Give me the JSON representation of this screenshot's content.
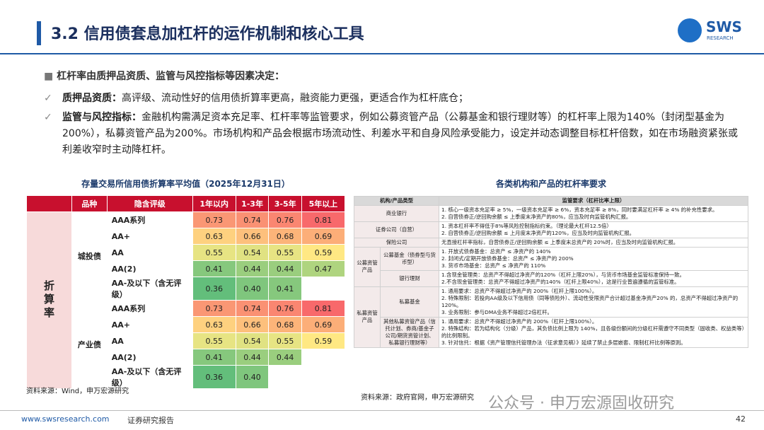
{
  "header": {
    "title": "3.2 信用债套息加杠杆的运作机制和核心工具",
    "logo": "SWS",
    "logo_sub": "RESEARCH"
  },
  "bullets": {
    "heading": "杠杆率由质押品资质、监管与风控指标等因素决定：",
    "items": [
      {
        "label": "质押品资质：",
        "text": "高评级、流动性好的信用债折算率更高，融资能力更强，更适合作为杠杆底仓；"
      },
      {
        "label": "监管与风控指标：",
        "text": "金融机构需满足资本充足率、杠杆率等监管要求，例如公募资管产品（公募基金和银行理财等）的杠杆率上限为140%（封闭型基金为200%），私募资管产品为200%。市场机构和产品会根据市场流动性、利差水平和自身风险承受能力，设定并动态调整目标杠杆倍数，如在市场融资紧张或利差收窄时主动降杠杆。"
      }
    ]
  },
  "left_table": {
    "title": "存量交易所信用债折算率平均值（2025年12月31日）",
    "columns": [
      "品种",
      "隐含评级",
      "1年以内",
      "1-3年",
      "3-5年",
      "5年以上"
    ],
    "group_label": "折算率",
    "groups": [
      {
        "name": "城投债",
        "rows": [
          {
            "rating": "AAA系列",
            "values": [
              "0.73",
              "0.74",
              "0.76",
              "0.81"
            ]
          },
          {
            "rating": "AA+",
            "values": [
              "0.63",
              "0.66",
              "0.68",
              "0.69"
            ]
          },
          {
            "rating": "AA",
            "values": [
              "0.55",
              "0.54",
              "0.55",
              "0.59"
            ]
          },
          {
            "rating": "AA(2)",
            "values": [
              "0.41",
              "0.44",
              "0.44",
              "0.47"
            ]
          },
          {
            "rating": "AA-及以下（含无评级）",
            "values": [
              "0.36",
              "0.40",
              "0.41"
            ]
          }
        ]
      },
      {
        "name": "产业债",
        "rows": [
          {
            "rating": "AAA系列",
            "values": [
              "0.73",
              "0.74",
              "0.76",
              "0.81"
            ]
          },
          {
            "rating": "AA+",
            "values": [
              "0.63",
              "0.66",
              "0.68",
              "0.69"
            ]
          },
          {
            "rating": "AA",
            "values": [
              "0.55",
              "0.54",
              "0.55",
              "0.59"
            ]
          },
          {
            "rating": "AA(2)",
            "values": [
              "0.41",
              "0.44",
              "0.44"
            ]
          },
          {
            "rating": "AA-及以下（含无评级）",
            "values": [
              "0.36",
              "0.40"
            ]
          }
        ]
      }
    ],
    "source": "资料来源：Wind，申万宏源研究"
  },
  "right_table": {
    "title": "各类机构和产品的杠杆率要求",
    "columns": [
      "机构/产品类型",
      "监管要求（杠杆比率上限）"
    ],
    "rows": [
      {
        "name": "商业银行",
        "lines": [
          "1. 核心一级资本充足率 ≥ 5%，一级资本充足率 ≥ 6%，资本充足率 ≥ 8%，同时要满足杠杆率 ≥ 4% 的补充性要求。",
          "2. 自营债券正/逆回购余额 ≤ 上季度末净资产的80%，应当及时向监管机构汇报。"
        ]
      },
      {
        "name": "证券公司（自营）",
        "lines": [
          "1. 资本杠杆率不得低于8%等风险控制指标约束。（理论最大杠杆12.5倍）",
          "2. 自营债券正/逆回购余额 ≤ 上月度末净资产的120%，应当及时向监管机构汇报。"
        ]
      },
      {
        "name": "保险公司",
        "lines": [
          "无直接杠杆率指标，自营债券正/逆回购余额 ≤ 上季度末总资产的 20%时，应当及时向监管机构汇报。"
        ]
      },
      {
        "group": "公募资管产品",
        "items": [
          {
            "name": "公募基金（债券型与货币型）",
            "lines": [
              "1. 开放式债券基金：总资产 ≤ 净资产的 140%",
              "2. 封闭式/定期开放债券基金：总资产 ≤ 净资产的 200%",
              "3. 货币市场基金：总资产 ≤ 净资产的 110%"
            ]
          },
          {
            "name": "银行理财",
            "lines": [
              "1.含现金管理类：总资产不得超过净资产的120%（杠杆上限20%），与货币市场基金监管标准保持一致。",
              "2.不含现金管理类：总资产不得超过净资产的140%（杠杆上限40%），这是行业普遍遵循的监管标准。"
            ]
          }
        ]
      },
      {
        "group": "私募资管产品",
        "items": [
          {
            "name": "私募基金",
            "lines": [
              "1. 通用要求：总资产不得超过净资产的 200%（杠杆上限100%）。",
              "2. 特殊限制：若投向AA级及以下信用债（同等债险外）、流动性受限资产合计超过基金净资产20% 的，总资产不得超过净资产的 120%。",
              "3. 业务限制：参与DMA业务不得超过2倍杠杆。"
            ]
          },
          {
            "name": "其他私募资管产品（信托计划、券商/基金子公司/期货资管计划、私募银行理财等）",
            "lines": [
              "1. 通用要求：总资产不得超过净资产的 200%（杠杆上限100%）。",
              "2. 特殊结构：若为结构化（分级）产品，其负债比例上限为 140%，且各级份额间的分级杠杆需遵守不同类型（固收类、权益类等）的比例限制。",
              "3. 针对信托：根据《资产管理信托管理办法（征求意见稿）》延续了禁止多层嵌套、限制杠杆比例等原则。"
            ]
          }
        ]
      }
    ],
    "source": "资料来源：政府官网，申万宏源研究"
  },
  "footer": {
    "url": "www.swsresearch.com",
    "label": "证券研究报告",
    "page": "42"
  },
  "watermark": "公众号 · 申万宏源固收研究"
}
